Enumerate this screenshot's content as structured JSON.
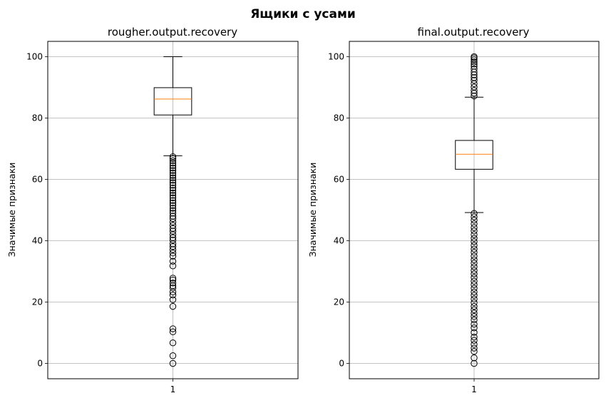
{
  "suptitle": "Ящики с усами",
  "chart_data": [
    {
      "type": "box",
      "title": "rougher.output.recovery",
      "xlabel": "",
      "ylabel": "Значимые признаки",
      "ylim": [
        -5,
        105
      ],
      "yticks": [
        0,
        20,
        40,
        60,
        80,
        100
      ],
      "categories": [
        "1"
      ],
      "grid": true,
      "box": {
        "q1": 81.0,
        "median": 86.2,
        "q3": 89.9,
        "whisker_low": 67.7,
        "whisker_high": 100.0
      },
      "fliers": [
        0,
        2.5,
        6.7,
        10.3,
        11.3,
        18.6,
        20.8,
        22.3,
        23.3,
        24.6,
        25.3,
        26.2,
        27.2,
        27.8,
        31.8,
        33.3,
        35.0,
        36.0,
        37.1,
        38.1,
        39.0,
        40.2,
        41.0,
        42.0,
        43.1,
        44.0,
        45.0,
        46.1,
        47.2,
        48.0,
        49.0,
        49.8,
        50.6,
        51.5,
        52.3,
        53.1,
        54.0,
        54.8,
        55.6,
        56.4,
        57.2,
        58.1,
        58.9,
        59.7,
        60.5,
        61.3,
        62.1,
        62.9,
        63.7,
        64.5,
        65.3,
        66.1,
        66.8,
        67.4
      ],
      "colors": {
        "box": "#000000",
        "median": "#ff7f0e",
        "grid": "#b0b0b0"
      }
    },
    {
      "type": "box",
      "title": "final.output.recovery",
      "xlabel": "",
      "ylabel": "Значимые признаки",
      "ylim": [
        -5,
        105
      ],
      "yticks": [
        0,
        20,
        40,
        60,
        80,
        100
      ],
      "categories": [
        "1"
      ],
      "grid": true,
      "box": {
        "q1": 63.3,
        "median": 68.2,
        "q3": 72.7,
        "whisker_low": 49.2,
        "whisker_high": 86.8
      },
      "fliers": [
        0,
        1.8,
        3.9,
        5.0,
        6.2,
        7.5,
        8.6,
        10.1,
        11.6,
        12.8,
        14.2,
        15.3,
        16.4,
        17.5,
        18.6,
        19.8,
        21.0,
        22.2,
        23.3,
        24.5,
        25.7,
        26.8,
        28.0,
        29.2,
        30.3,
        31.5,
        32.7,
        33.8,
        35.0,
        36.2,
        37.3,
        38.5,
        39.7,
        40.8,
        42.0,
        43.2,
        44.3,
        45.5,
        46.7,
        47.8,
        48.9,
        87.2,
        88.1,
        89.0,
        90.1,
        91.2,
        92.3,
        93.2,
        94.1,
        95.0,
        96.0,
        96.9,
        97.6,
        98.3,
        99.0,
        99.6,
        100.0
      ],
      "colors": {
        "box": "#000000",
        "median": "#ff7f0e",
        "grid": "#b0b0b0"
      }
    }
  ]
}
